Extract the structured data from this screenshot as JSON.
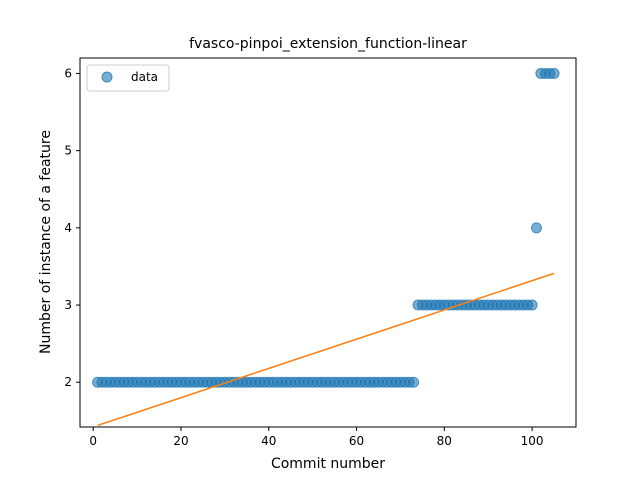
{
  "chart_data": {
    "type": "scatter",
    "title": "fvasco-pinpoi_extension_function-linear",
    "xlabel": "Commit number",
    "ylabel": "Number of instance of a feature",
    "xlim": [
      -3,
      110
    ],
    "ylim": [
      1.42,
      6.2
    ],
    "xticks": [
      0,
      20,
      40,
      60,
      80,
      100
    ],
    "yticks": [
      2,
      3,
      4,
      5,
      6
    ],
    "legend": {
      "position": "top-left",
      "entries": [
        "data"
      ]
    },
    "colors": {
      "data": "#1f77b4",
      "fit": "#ff7f0e"
    },
    "series": [
      {
        "name": "data",
        "kind": "points",
        "ranges": [
          {
            "x_start": 1,
            "x_end": 73,
            "y": 2
          },
          {
            "x_start": 74,
            "x_end": 100,
            "y": 3
          },
          {
            "x_start": 101,
            "x_end": 101,
            "y": 4
          },
          {
            "x_start": 102,
            "x_end": 105,
            "y": 6
          }
        ]
      },
      {
        "kind": "line",
        "x": [
          1,
          105
        ],
        "y": [
          1.44,
          3.41
        ]
      }
    ]
  }
}
